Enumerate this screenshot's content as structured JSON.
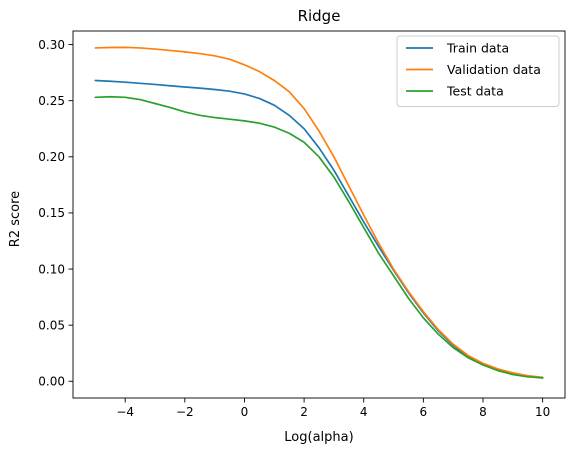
{
  "chart_data": {
    "type": "line",
    "title": "Ridge",
    "xlabel": "Log(alpha)",
    "ylabel": "R2 score",
    "xlim": [
      -5.75,
      10.75
    ],
    "ylim": [
      -0.0149,
      0.3121
    ],
    "xticks": [
      -4,
      -2,
      0,
      2,
      4,
      6,
      8,
      10
    ],
    "xtick_labels": [
      "−4",
      "−2",
      "0",
      "2",
      "4",
      "6",
      "8",
      "10"
    ],
    "yticks": [
      0.0,
      0.05,
      0.1,
      0.15,
      0.2,
      0.25,
      0.3
    ],
    "ytick_labels": [
      "0.00",
      "0.05",
      "0.10",
      "0.15",
      "0.20",
      "0.25",
      "0.30"
    ],
    "grid": false,
    "legend_position": "top-right",
    "x": [
      -5,
      -4.5,
      -4,
      -3.5,
      -3,
      -2.5,
      -2,
      -1.5,
      -1,
      -0.5,
      0,
      0.5,
      1,
      1.5,
      2,
      2.5,
      3,
      3.5,
      4,
      4.5,
      5,
      5.5,
      6,
      6.5,
      7,
      7.5,
      8,
      8.5,
      9,
      9.5,
      10
    ],
    "series": [
      {
        "name": "Train data",
        "color": "#1f77b4",
        "values": [
          0.268,
          0.2673,
          0.2665,
          0.2655,
          0.2645,
          0.2633,
          0.2622,
          0.2612,
          0.26,
          0.2585,
          0.256,
          0.252,
          0.246,
          0.237,
          0.225,
          0.208,
          0.188,
          0.165,
          0.142,
          0.12,
          0.099,
          0.079,
          0.061,
          0.045,
          0.032,
          0.022,
          0.015,
          0.01,
          0.0065,
          0.0045,
          0.003
        ]
      },
      {
        "name": "Validation data",
        "color": "#ff7f0e",
        "values": [
          0.297,
          0.2974,
          0.2975,
          0.297,
          0.296,
          0.2948,
          0.2935,
          0.292,
          0.29,
          0.287,
          0.282,
          0.276,
          0.268,
          0.258,
          0.243,
          0.223,
          0.2,
          0.174,
          0.148,
          0.123,
          0.1,
          0.08,
          0.062,
          0.046,
          0.033,
          0.023,
          0.016,
          0.011,
          0.0075,
          0.005,
          0.0035
        ]
      },
      {
        "name": "Test data",
        "color": "#2ca02c",
        "values": [
          0.253,
          0.2535,
          0.253,
          0.251,
          0.2475,
          0.244,
          0.24,
          0.237,
          0.235,
          0.2335,
          0.232,
          0.23,
          0.2265,
          0.221,
          0.213,
          0.2,
          0.182,
          0.16,
          0.137,
          0.114,
          0.094,
          0.074,
          0.0565,
          0.042,
          0.03,
          0.021,
          0.0145,
          0.0095,
          0.006,
          0.004,
          0.003
        ]
      }
    ]
  }
}
